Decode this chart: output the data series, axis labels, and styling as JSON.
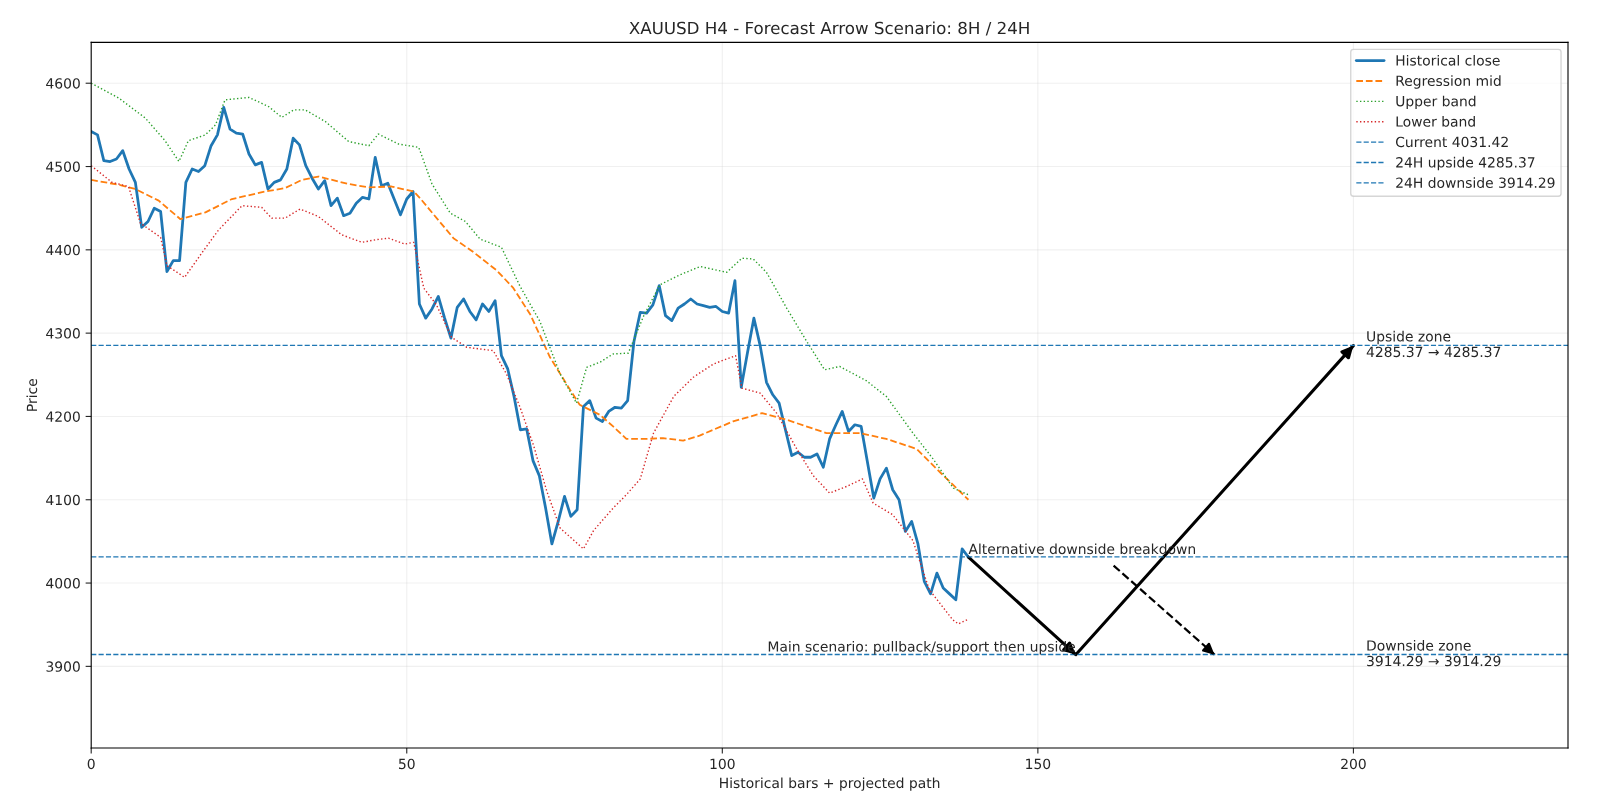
{
  "chart_data": {
    "type": "line",
    "title": "XAUUSD H4 - Forecast Arrow Scenario: 8H / 24H",
    "xlabel": "Historical bars + projected path",
    "ylabel": "Price",
    "xlim": [
      0,
      234
    ],
    "ylim": [
      3802,
      4649
    ],
    "xticks": [
      0,
      50,
      100,
      150,
      200
    ],
    "yticks": [
      3900,
      4000,
      4100,
      4200,
      4300,
      4400,
      4500,
      4600
    ],
    "grid": true,
    "legend": "top right",
    "series": [
      {
        "name": "Historical close",
        "color": "#1f77b4",
        "line_style": "solid",
        "x": [
          0,
          1,
          2,
          3,
          4,
          5,
          6,
          7,
          8,
          9,
          10,
          11,
          12,
          13,
          14,
          15,
          16,
          17,
          18,
          19,
          20,
          21,
          22,
          23,
          24,
          25,
          26,
          27,
          28,
          29,
          30,
          31,
          32,
          33,
          34,
          35,
          36,
          37,
          38,
          39,
          40,
          41,
          42,
          43,
          44,
          45,
          46,
          47,
          48,
          49,
          50,
          51,
          52,
          53,
          54,
          55,
          56,
          57,
          58,
          59,
          60,
          61,
          62,
          63,
          64,
          65,
          66,
          67,
          68,
          69,
          70,
          71,
          72,
          73,
          74,
          75,
          76,
          77,
          78,
          79,
          80,
          81,
          82,
          83,
          84,
          85,
          86,
          87,
          88,
          89,
          90,
          91,
          92,
          93,
          94,
          95,
          96,
          97,
          98,
          99,
          100,
          101,
          102,
          103,
          104,
          105,
          106,
          107,
          108,
          109,
          110,
          111,
          112,
          113,
          114,
          115,
          116,
          117,
          118,
          119,
          120,
          121,
          122,
          123,
          124,
          125,
          126,
          127,
          128,
          129,
          130,
          131,
          132,
          133,
          134,
          135,
          136,
          137,
          138,
          139
        ],
        "values": [
          4542,
          4538,
          4507,
          4506,
          4509,
          4519,
          4497,
          4481,
          4427,
          4434,
          4450,
          4446,
          4374,
          4387,
          4387,
          4481,
          4497,
          4494,
          4501,
          4525,
          4538,
          4571,
          4545,
          4540,
          4539,
          4515,
          4502,
          4505,
          4473,
          4481,
          4484,
          4497,
          4534,
          4526,
          4501,
          4486,
          4473,
          4483,
          4453,
          4462,
          4441,
          4444,
          4456,
          4463,
          4461,
          4511,
          4477,
          4480,
          4461,
          4442,
          4461,
          4470,
          4335,
          4318,
          4329,
          4344,
          4318,
          4294,
          4331,
          4341,
          4326,
          4316,
          4335,
          4326,
          4339,
          4273,
          4257,
          4224,
          4184,
          4185,
          4147,
          4129,
          4090,
          4047,
          4074,
          4104,
          4080,
          4088,
          4212,
          4219,
          4198,
          4194,
          4206,
          4211,
          4210,
          4219,
          4290,
          4325,
          4324,
          4334,
          4357,
          4321,
          4315,
          4330,
          4335,
          4341,
          4335,
          4333,
          4331,
          4332,
          4326,
          4324,
          4363,
          4235,
          4277,
          4318,
          4285,
          4241,
          4226,
          4216,
          4184,
          4153,
          4157,
          4151,
          4151,
          4155,
          4139,
          4173,
          4190,
          4206,
          4182,
          4190,
          4188,
          4145,
          4102,
          4125,
          4138,
          4112,
          4100,
          4062,
          4074,
          4047,
          4002,
          3987,
          4012,
          3994,
          3987,
          3980,
          4041,
          4031
        ]
      },
      {
        "name": "Regression mid",
        "color": "#ff7f0e",
        "line_style": "dashed",
        "x": [
          0,
          4.4,
          7,
          10.7,
          14.1,
          18.1,
          22.3,
          27.6,
          30.7,
          33.4,
          36,
          40.8,
          44,
          47.6,
          51.1,
          52.1,
          57.4,
          60.6,
          64.3,
          66.9,
          69.6,
          72.7,
          75.3,
          77.4,
          80.6,
          82.7,
          84.8,
          88,
          90.6,
          93.8,
          96.4,
          101.7,
          106.3,
          110.2,
          116.5,
          121.8,
          126,
          130.8,
          134.5,
          139
        ],
        "values": [
          4484,
          4478,
          4473,
          4459,
          4437,
          4445,
          4461,
          4470,
          4474,
          4484,
          4488,
          4479,
          4475,
          4476,
          4470,
          4462,
          4414,
          4397,
          4375,
          4354,
          4322,
          4271,
          4239,
          4214,
          4202,
          4188,
          4173,
          4173,
          4174,
          4171,
          4177,
          4194,
          4204,
          4196,
          4180,
          4180,
          4173,
          4161,
          4133,
          4100
        ]
      },
      {
        "name": "Upper band",
        "color": "#2ca02c",
        "line_style": "dotted",
        "x": [
          0,
          4.4,
          8.6,
          11.7,
          13.9,
          15.4,
          18.1,
          19.7,
          21.2,
          25,
          28.1,
          30.2,
          32.1,
          33.9,
          37.1,
          40.8,
          44,
          45.5,
          48.7,
          51.9,
          54,
          56.9,
          59.3,
          61.6,
          65,
          67.9,
          71.1,
          74.3,
          76.9,
          78.5,
          80.6,
          82.7,
          85.1,
          87.5,
          90.1,
          93.3,
          96.5,
          100.7,
          103.1,
          104.9,
          107,
          110.2,
          113.3,
          116.2,
          118.6,
          122.8,
          126,
          130.2,
          133.4,
          136.6,
          139
        ],
        "values": [
          4600,
          4582,
          4558,
          4531,
          4506,
          4531,
          4538,
          4550,
          4580,
          4583,
          4572,
          4559,
          4568,
          4568,
          4554,
          4530,
          4525,
          4539,
          4527,
          4523,
          4479,
          4444,
          4434,
          4413,
          4403,
          4357,
          4314,
          4251,
          4216,
          4259,
          4265,
          4275,
          4276,
          4320,
          4358,
          4370,
          4380,
          4373,
          4390,
          4389,
          4373,
          4330,
          4291,
          4256,
          4260,
          4243,
          4224,
          4180,
          4149,
          4114,
          4106
        ]
      },
      {
        "name": "Lower band",
        "color": "#d62728",
        "line_style": "dotted",
        "x": [
          0,
          3.3,
          5.9,
          7.8,
          11,
          12,
          14.8,
          17.6,
          20.2,
          23.9,
          27,
          28.6,
          30.7,
          33.1,
          36,
          39.7,
          42.9,
          45,
          47.1,
          49.7,
          51.1,
          52.7,
          54.7,
          57.1,
          59.5,
          63.7,
          65.8,
          67.9,
          70.1,
          72.2,
          74.3,
          78,
          79.6,
          82.7,
          84.8,
          87,
          89.1,
          92.3,
          95.4,
          98.6,
          102.1,
          103.1,
          106,
          108.6,
          111.8,
          114.4,
          117,
          119.7,
          122.2,
          123.9,
          127,
          130.2,
          132.8,
          136.5,
          137.4,
          138.8
        ],
        "values": [
          4501,
          4481,
          4476,
          4432,
          4415,
          4381,
          4367,
          4397,
          4424,
          4453,
          4451,
          4438,
          4438,
          4449,
          4440,
          4418,
          4409,
          4412,
          4414,
          4407,
          4409,
          4354,
          4334,
          4295,
          4283,
          4279,
          4251,
          4212,
          4165,
          4110,
          4066,
          4041,
          4063,
          4090,
          4106,
          4125,
          4180,
          4224,
          4247,
          4263,
          4273,
          4234,
          4228,
          4204,
          4161,
          4129,
          4108,
          4116,
          4125,
          4096,
          4082,
          4051,
          3992,
          3956,
          3951,
          3956
        ]
      },
      {
        "color": "#000000",
        "line_style": "solid",
        "x": [
          139,
          156,
          200
        ],
        "values": [
          4031,
          3914,
          4285
        ]
      },
      {
        "color": "#000000",
        "line_style": "dashed",
        "x": [
          162,
          178
        ],
        "values": [
          4021,
          3914
        ]
      }
    ],
    "ref_lines": [
      {
        "axis": "y",
        "value": 4031.42,
        "label": "Current 4031.42",
        "color": "#1f77b4",
        "line_style": "dashed"
      },
      {
        "axis": "y",
        "value": 4285.37,
        "label": "24H upside 4285.37",
        "color": "#1f77b4",
        "line_style": "dashed"
      },
      {
        "axis": "y",
        "value": 3914.29,
        "label": "24H downside 3914.29",
        "color": "#1f77b4",
        "line_style": "dashed"
      }
    ],
    "annotations": [
      {
        "text": "Main scenario: pullback/support then upside",
        "x": 156,
        "y": 3914.29
      },
      {
        "text": "Alternative downside breakdown",
        "x": 139,
        "y": 4031.42
      },
      {
        "text": "Upside zone\n4285.37 → 4285.37",
        "x": 202,
        "y": 4285.37
      },
      {
        "text": "Downside zone\n3914.29 → 3914.29",
        "x": 202,
        "y": 3914.29
      }
    ]
  }
}
